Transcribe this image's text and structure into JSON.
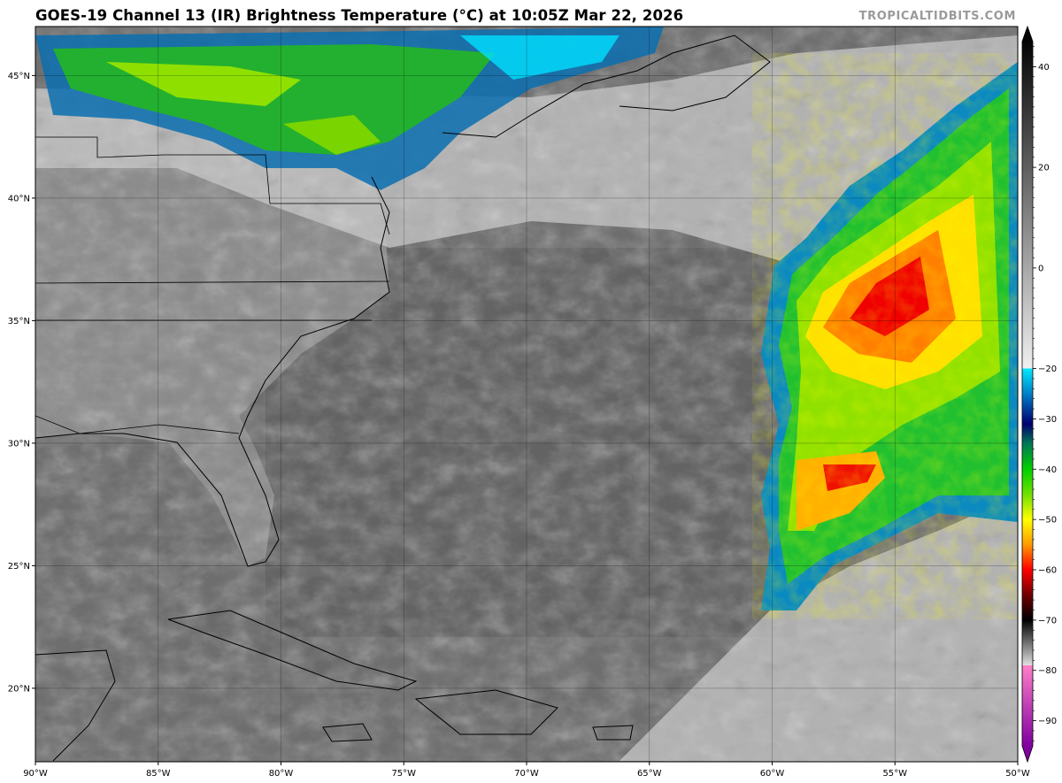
{
  "header": {
    "title": "GOES-19 Channel 13 (IR) Brightness Temperature (°C) at 10:05Z Mar 22, 2026",
    "credit": "TROPICALTIDBITS.COM"
  },
  "map": {
    "lon_range": [
      -90,
      -50
    ],
    "lat_range": [
      17,
      47
    ],
    "lon_ticks": [
      {
        "value": -90,
        "label": "90°W"
      },
      {
        "value": -85,
        "label": "85°W"
      },
      {
        "value": -80,
        "label": "80°W"
      },
      {
        "value": -75,
        "label": "75°W"
      },
      {
        "value": -70,
        "label": "70°W"
      },
      {
        "value": -65,
        "label": "65°W"
      },
      {
        "value": -60,
        "label": "60°W"
      },
      {
        "value": -55,
        "label": "55°W"
      },
      {
        "value": -50,
        "label": "50°W"
      }
    ],
    "lat_ticks": [
      {
        "value": 45,
        "label": "45°N"
      },
      {
        "value": 40,
        "label": "40°N"
      },
      {
        "value": 35,
        "label": "35°N"
      },
      {
        "value": 30,
        "label": "30°N"
      },
      {
        "value": 25,
        "label": "25°N"
      },
      {
        "value": 20,
        "label": "20°N"
      }
    ]
  },
  "colorbar": {
    "range": [
      -95,
      45
    ],
    "ticks": [
      {
        "value": 40,
        "label": "40"
      },
      {
        "value": 20,
        "label": "20"
      },
      {
        "value": 0,
        "label": "0"
      },
      {
        "value": -20,
        "label": "−20"
      },
      {
        "value": -30,
        "label": "−30"
      },
      {
        "value": -40,
        "label": "−40"
      },
      {
        "value": -50,
        "label": "−50"
      },
      {
        "value": -60,
        "label": "−60"
      },
      {
        "value": -70,
        "label": "−70"
      },
      {
        "value": -80,
        "label": "−80"
      },
      {
        "value": -90,
        "label": "−90"
      }
    ],
    "stops": [
      {
        "value": 45,
        "color": "#050505"
      },
      {
        "value": -20,
        "color": "#f0f0f0"
      },
      {
        "value": -20.01,
        "color": "#00e8ff"
      },
      {
        "value": -25,
        "color": "#0080c8"
      },
      {
        "value": -31,
        "color": "#000070"
      },
      {
        "value": -35,
        "color": "#007a55"
      },
      {
        "value": -40,
        "color": "#00d000"
      },
      {
        "value": -45,
        "color": "#70e000"
      },
      {
        "value": -50,
        "color": "#ffff00"
      },
      {
        "value": -55,
        "color": "#ff9a00"
      },
      {
        "value": -60,
        "color": "#ff0000"
      },
      {
        "value": -65,
        "color": "#700000"
      },
      {
        "value": -70,
        "color": "#000000"
      },
      {
        "value": -79,
        "color": "#e0e0e0"
      },
      {
        "value": -79.01,
        "color": "#ff80c8"
      },
      {
        "value": -95,
        "color": "#8000a0"
      }
    ]
  }
}
